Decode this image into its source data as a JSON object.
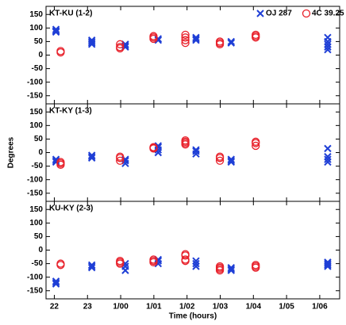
{
  "chart_data": [
    {
      "type": "scatter",
      "title": "KT-KU (1-2)",
      "ylim": [
        -180,
        180
      ],
      "yticks": [
        150,
        100,
        50,
        0,
        -50,
        -100,
        -150
      ],
      "xlim": [
        21.75,
        30.6
      ],
      "series": [
        {
          "name": "OJ 287",
          "color": "#1f3fd6",
          "marker": "x",
          "x": [
            22.05,
            22.05,
            22.05,
            22.05,
            23.13,
            23.13,
            23.13,
            23.13,
            24.14,
            24.14,
            24.14,
            25.13,
            25.13,
            26.27,
            26.27,
            26.27,
            27.33,
            27.33,
            30.24,
            30.24,
            30.24,
            30.24,
            30.24
          ],
          "values": [
            90,
            85,
            95,
            88,
            50,
            45,
            40,
            55,
            35,
            40,
            30,
            55,
            60,
            60,
            55,
            65,
            50,
            45,
            30,
            40,
            20,
            50,
            65
          ]
        },
        {
          "name": "4C 39.25",
          "color": "#e8202a",
          "marker": "o",
          "x": [
            22.19,
            22.19,
            23.98,
            23.98,
            23.98,
            24.99,
            24.99,
            24.99,
            25.95,
            25.95,
            25.95,
            25.95,
            26.99,
            26.99,
            26.99,
            28.07,
            28.07,
            28.07
          ],
          "values": [
            15,
            10,
            40,
            30,
            25,
            65,
            60,
            70,
            65,
            55,
            75,
            45,
            45,
            40,
            50,
            70,
            75,
            65
          ]
        }
      ]
    },
    {
      "type": "scatter",
      "title": "KT-KY (1-3)",
      "ylabel": "Degrees",
      "ylim": [
        -180,
        180
      ],
      "yticks": [
        150,
        100,
        50,
        0,
        -50,
        -100,
        -150
      ],
      "xlim": [
        21.75,
        30.6
      ],
      "series": [
        {
          "color": "#1f3fd6",
          "marker": "x",
          "x": [
            22.05,
            22.05,
            22.05,
            23.13,
            23.13,
            23.13,
            24.14,
            24.14,
            24.14,
            25.13,
            25.13,
            25.13,
            25.13,
            26.27,
            26.27,
            26.27,
            27.33,
            27.33,
            27.33,
            30.24,
            30.24,
            30.24,
            30.24
          ],
          "values": [
            -25,
            -30,
            -35,
            -15,
            -10,
            -20,
            -30,
            -40,
            -25,
            20,
            10,
            0,
            25,
            5,
            -5,
            10,
            -25,
            -30,
            -35,
            -15,
            -25,
            -35,
            15
          ]
        },
        {
          "color": "#e8202a",
          "marker": "o",
          "x": [
            22.19,
            22.19,
            22.19,
            23.98,
            23.98,
            23.98,
            24.99,
            24.99,
            24.99,
            25.95,
            25.95,
            25.95,
            25.95,
            26.99,
            26.99,
            26.99,
            28.07,
            28.07,
            28.07
          ],
          "values": [
            -40,
            -45,
            -35,
            -20,
            -30,
            -15,
            15,
            20,
            18,
            40,
            45,
            30,
            35,
            -20,
            -15,
            -30,
            35,
            25,
            40
          ]
        }
      ]
    },
    {
      "type": "scatter",
      "title": "KU-KY (2-3)",
      "xlabel": "Time (hours)",
      "ylim": [
        -180,
        180
      ],
      "yticks": [
        150,
        100,
        50,
        0,
        -50,
        -100,
        -150
      ],
      "xlim": [
        21.75,
        30.6
      ],
      "xticks": [
        22,
        23,
        {
          "value": 24,
          "label": "1/00"
        },
        {
          "value": 25,
          "label": "1/01"
        },
        {
          "value": 26,
          "label": "1/02"
        },
        {
          "value": 27,
          "label": "1/03"
        },
        {
          "value": 28,
          "label": "1/04"
        },
        {
          "value": 29,
          "label": "1/05"
        },
        {
          "value": 30,
          "label": "1/06"
        }
      ],
      "series": [
        {
          "color": "#1f3fd6",
          "marker": "x",
          "x": [
            22.05,
            22.05,
            22.05,
            23.13,
            23.13,
            23.13,
            24.14,
            24.14,
            24.14,
            25.13,
            25.13,
            25.13,
            26.27,
            26.27,
            26.27,
            27.33,
            27.33,
            27.33,
            30.24,
            30.24,
            30.24,
            30.24
          ],
          "values": [
            -120,
            -125,
            -115,
            -55,
            -60,
            -65,
            -60,
            -75,
            -50,
            -40,
            -50,
            -35,
            -50,
            -60,
            -40,
            -65,
            -75,
            -70,
            -50,
            -55,
            -45,
            -60
          ]
        },
        {
          "color": "#e8202a",
          "marker": "o",
          "x": [
            22.19,
            22.19,
            23.98,
            23.98,
            23.98,
            24.99,
            24.99,
            24.99,
            25.95,
            25.95,
            25.95,
            25.95,
            26.99,
            26.99,
            26.99,
            26.99,
            28.07,
            28.07,
            28.07
          ],
          "values": [
            -50,
            -55,
            -45,
            -40,
            -50,
            -40,
            -35,
            -45,
            -20,
            -15,
            -35,
            -40,
            -70,
            -75,
            -65,
            -60,
            -55,
            -60,
            -65
          ]
        }
      ]
    }
  ]
}
